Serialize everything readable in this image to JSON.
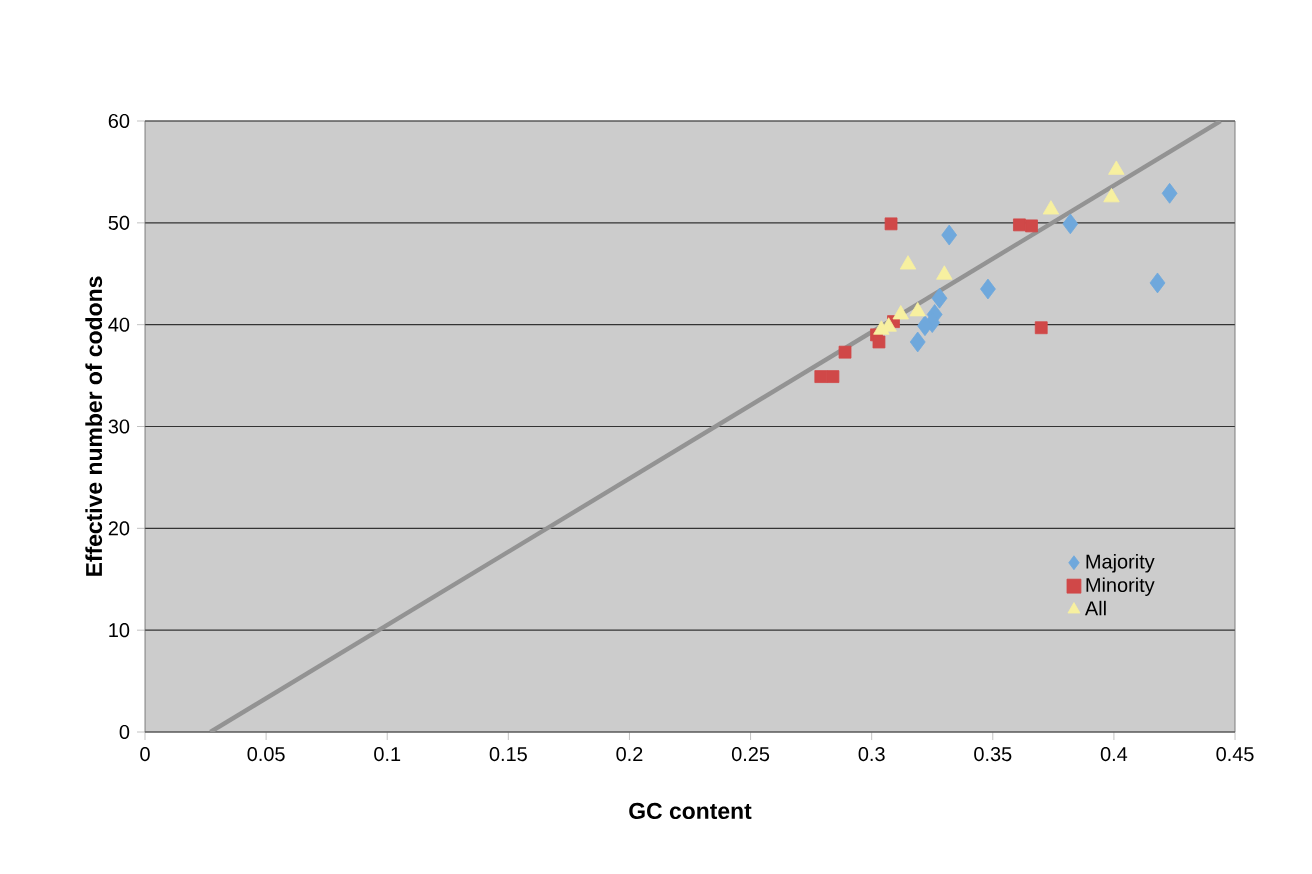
{
  "chart_data": {
    "type": "scatter",
    "xlabel": "GC content",
    "ylabel": "Effective number of codons",
    "xlim": [
      0,
      0.45
    ],
    "ylim": [
      0,
      60
    ],
    "xticks": [
      0,
      0.05,
      0.1,
      0.15,
      0.2,
      0.25,
      0.3,
      0.35,
      0.4,
      0.45
    ],
    "yticks": [
      0,
      10,
      20,
      30,
      40,
      50,
      60
    ],
    "grid": "y",
    "legend": "right",
    "series": [
      {
        "name": "Majority",
        "color": "#6fa8dc",
        "marker": "diamond",
        "x": [
          0.332,
          0.382,
          0.423,
          0.418,
          0.348,
          0.328,
          0.326,
          0.325,
          0.322,
          0.319
        ],
        "values": [
          48.8,
          49.9,
          52.9,
          44.1,
          43.5,
          42.6,
          41.0,
          40.2,
          39.9,
          38.3
        ]
      },
      {
        "name": "Minority",
        "color": "#d04848",
        "marker": "square",
        "x": [
          0.308,
          0.361,
          0.366,
          0.37,
          0.309,
          0.302,
          0.303,
          0.289,
          0.279,
          0.284
        ],
        "values": [
          49.9,
          49.8,
          49.7,
          39.7,
          40.3,
          39.0,
          38.3,
          37.3,
          34.9,
          34.9
        ]
      },
      {
        "name": "All",
        "color": "#f7f0a0",
        "marker": "triangle",
        "x": [
          0.401,
          0.399,
          0.374,
          0.315,
          0.33,
          0.319,
          0.312,
          0.307,
          0.304
        ],
        "values": [
          55.2,
          52.5,
          51.3,
          45.9,
          44.9,
          41.3,
          41.0,
          39.8,
          39.5
        ]
      },
      {
        "type": "line",
        "color": "#939393",
        "marker": "none",
        "x": [
          0.027,
          0.444
        ],
        "values": [
          0,
          60
        ]
      }
    ]
  }
}
